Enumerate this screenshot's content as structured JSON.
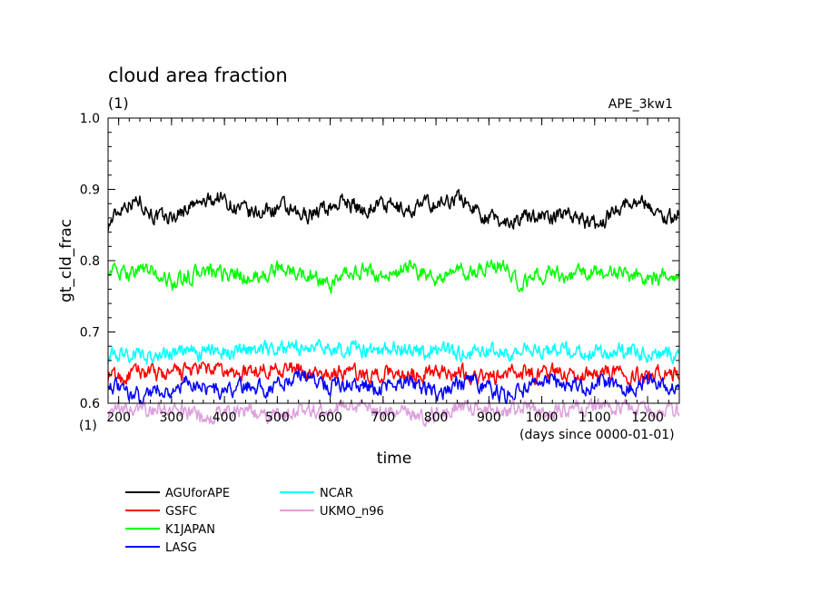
{
  "chart_data": {
    "type": "line",
    "title": "cloud area fraction",
    "subtitle": "(1)",
    "run_label": "APE_3kw1",
    "xlabel": "time",
    "ylabel": "gt_cld_frac",
    "x_unit_label": "(days since 0000-01-01)",
    "y_unit_label": "(1)",
    "xlim": [
      180,
      1260
    ],
    "ylim": [
      0.6,
      1.0
    ],
    "xticks": [
      200,
      300,
      400,
      500,
      600,
      700,
      800,
      900,
      1000,
      1100,
      1200
    ],
    "yticks": [
      0.6,
      0.7,
      0.8,
      0.9,
      1.0
    ],
    "ytick_labels": [
      "0.6",
      "0.7",
      "0.8",
      "0.9",
      "1.0"
    ],
    "grid": false,
    "legend_position": "bottom-left",
    "series": [
      {
        "name": "AGUforAPE",
        "color": "#000000",
        "x": [
          180,
          210,
          240,
          270,
          300,
          330,
          360,
          390,
          420,
          450,
          480,
          510,
          540,
          570,
          600,
          630,
          660,
          690,
          720,
          750,
          780,
          810,
          840,
          870,
          900,
          930,
          960,
          990,
          1020,
          1050,
          1080,
          1110,
          1140,
          1170,
          1200,
          1230,
          1260
        ],
        "values": [
          0.85,
          0.88,
          0.885,
          0.86,
          0.86,
          0.875,
          0.88,
          0.89,
          0.875,
          0.865,
          0.87,
          0.875,
          0.86,
          0.87,
          0.875,
          0.885,
          0.87,
          0.88,
          0.875,
          0.87,
          0.88,
          0.88,
          0.89,
          0.875,
          0.86,
          0.855,
          0.86,
          0.865,
          0.86,
          0.87,
          0.855,
          0.85,
          0.875,
          0.885,
          0.88,
          0.86,
          0.865
        ]
      },
      {
        "name": "GSFC",
        "color": "#ff0000",
        "x": [
          180,
          210,
          240,
          270,
          300,
          330,
          360,
          390,
          420,
          450,
          480,
          510,
          540,
          570,
          600,
          630,
          660,
          690,
          720,
          750,
          780,
          810,
          840,
          870,
          900,
          930,
          960,
          990,
          1020,
          1050,
          1080,
          1110,
          1140,
          1170,
          1200,
          1230,
          1260
        ],
        "values": [
          0.64,
          0.635,
          0.645,
          0.64,
          0.64,
          0.645,
          0.648,
          0.645,
          0.64,
          0.645,
          0.65,
          0.65,
          0.645,
          0.64,
          0.64,
          0.645,
          0.64,
          0.64,
          0.645,
          0.64,
          0.64,
          0.645,
          0.645,
          0.64,
          0.635,
          0.64,
          0.645,
          0.64,
          0.645,
          0.64,
          0.64,
          0.645,
          0.645,
          0.64,
          0.64,
          0.645,
          0.64
        ]
      },
      {
        "name": "K1JAPAN",
        "color": "#00ff00",
        "x": [
          180,
          210,
          240,
          270,
          300,
          330,
          360,
          390,
          420,
          450,
          480,
          510,
          540,
          570,
          600,
          630,
          660,
          690,
          720,
          750,
          780,
          810,
          840,
          870,
          900,
          930,
          960,
          990,
          1020,
          1050,
          1080,
          1110,
          1140,
          1170,
          1200,
          1230,
          1260
        ],
        "values": [
          0.79,
          0.78,
          0.79,
          0.78,
          0.77,
          0.775,
          0.785,
          0.78,
          0.78,
          0.775,
          0.78,
          0.79,
          0.78,
          0.78,
          0.76,
          0.78,
          0.785,
          0.78,
          0.78,
          0.79,
          0.78,
          0.775,
          0.785,
          0.78,
          0.795,
          0.79,
          0.765,
          0.78,
          0.785,
          0.78,
          0.78,
          0.785,
          0.785,
          0.78,
          0.775,
          0.775,
          0.785
        ]
      },
      {
        "name": "LASG",
        "color": "#0000ff",
        "x": [
          180,
          210,
          240,
          270,
          300,
          330,
          360,
          390,
          420,
          450,
          480,
          510,
          540,
          570,
          600,
          630,
          660,
          690,
          720,
          750,
          780,
          810,
          840,
          870,
          900,
          930,
          960,
          990,
          1020,
          1050,
          1080,
          1110,
          1140,
          1170,
          1200,
          1230,
          1260
        ],
        "values": [
          0.63,
          0.615,
          0.61,
          0.62,
          0.615,
          0.63,
          0.625,
          0.615,
          0.62,
          0.625,
          0.62,
          0.63,
          0.64,
          0.635,
          0.625,
          0.63,
          0.625,
          0.62,
          0.63,
          0.625,
          0.62,
          0.615,
          0.625,
          0.63,
          0.62,
          0.61,
          0.62,
          0.625,
          0.63,
          0.625,
          0.62,
          0.63,
          0.625,
          0.62,
          0.63,
          0.625,
          0.625
        ]
      },
      {
        "name": "NCAR",
        "color": "#00ffff",
        "x": [
          180,
          210,
          240,
          270,
          300,
          330,
          360,
          390,
          420,
          450,
          480,
          510,
          540,
          570,
          600,
          630,
          660,
          690,
          720,
          750,
          780,
          810,
          840,
          870,
          900,
          930,
          960,
          990,
          1020,
          1050,
          1080,
          1110,
          1140,
          1170,
          1200,
          1230,
          1260
        ],
        "values": [
          0.665,
          0.67,
          0.668,
          0.665,
          0.67,
          0.672,
          0.67,
          0.675,
          0.67,
          0.675,
          0.678,
          0.68,
          0.675,
          0.678,
          0.68,
          0.675,
          0.675,
          0.672,
          0.678,
          0.675,
          0.672,
          0.675,
          0.67,
          0.672,
          0.675,
          0.67,
          0.675,
          0.672,
          0.675,
          0.678,
          0.672,
          0.67,
          0.675,
          0.672,
          0.67,
          0.67,
          0.665
        ]
      },
      {
        "name": "UKMO_n96",
        "color": "#dda0dd",
        "x": [
          180,
          210,
          240,
          270,
          300,
          330,
          360,
          390,
          420,
          450,
          480,
          510,
          540,
          570,
          600,
          630,
          660,
          690,
          720,
          750,
          780,
          810,
          840,
          870,
          900,
          930,
          960,
          990,
          1020,
          1050,
          1080,
          1110,
          1140,
          1170,
          1200,
          1230,
          1260
        ],
        "values": [
          0.585,
          0.59,
          0.588,
          0.592,
          0.59,
          0.585,
          0.58,
          0.585,
          0.588,
          0.59,
          0.585,
          0.585,
          0.595,
          0.59,
          0.588,
          0.595,
          0.592,
          0.588,
          0.59,
          0.585,
          0.58,
          0.59,
          0.595,
          0.592,
          0.588,
          0.59,
          0.595,
          0.59,
          0.588,
          0.59,
          0.595,
          0.592,
          0.59,
          0.595,
          0.59,
          0.588,
          0.585
        ]
      }
    ]
  }
}
